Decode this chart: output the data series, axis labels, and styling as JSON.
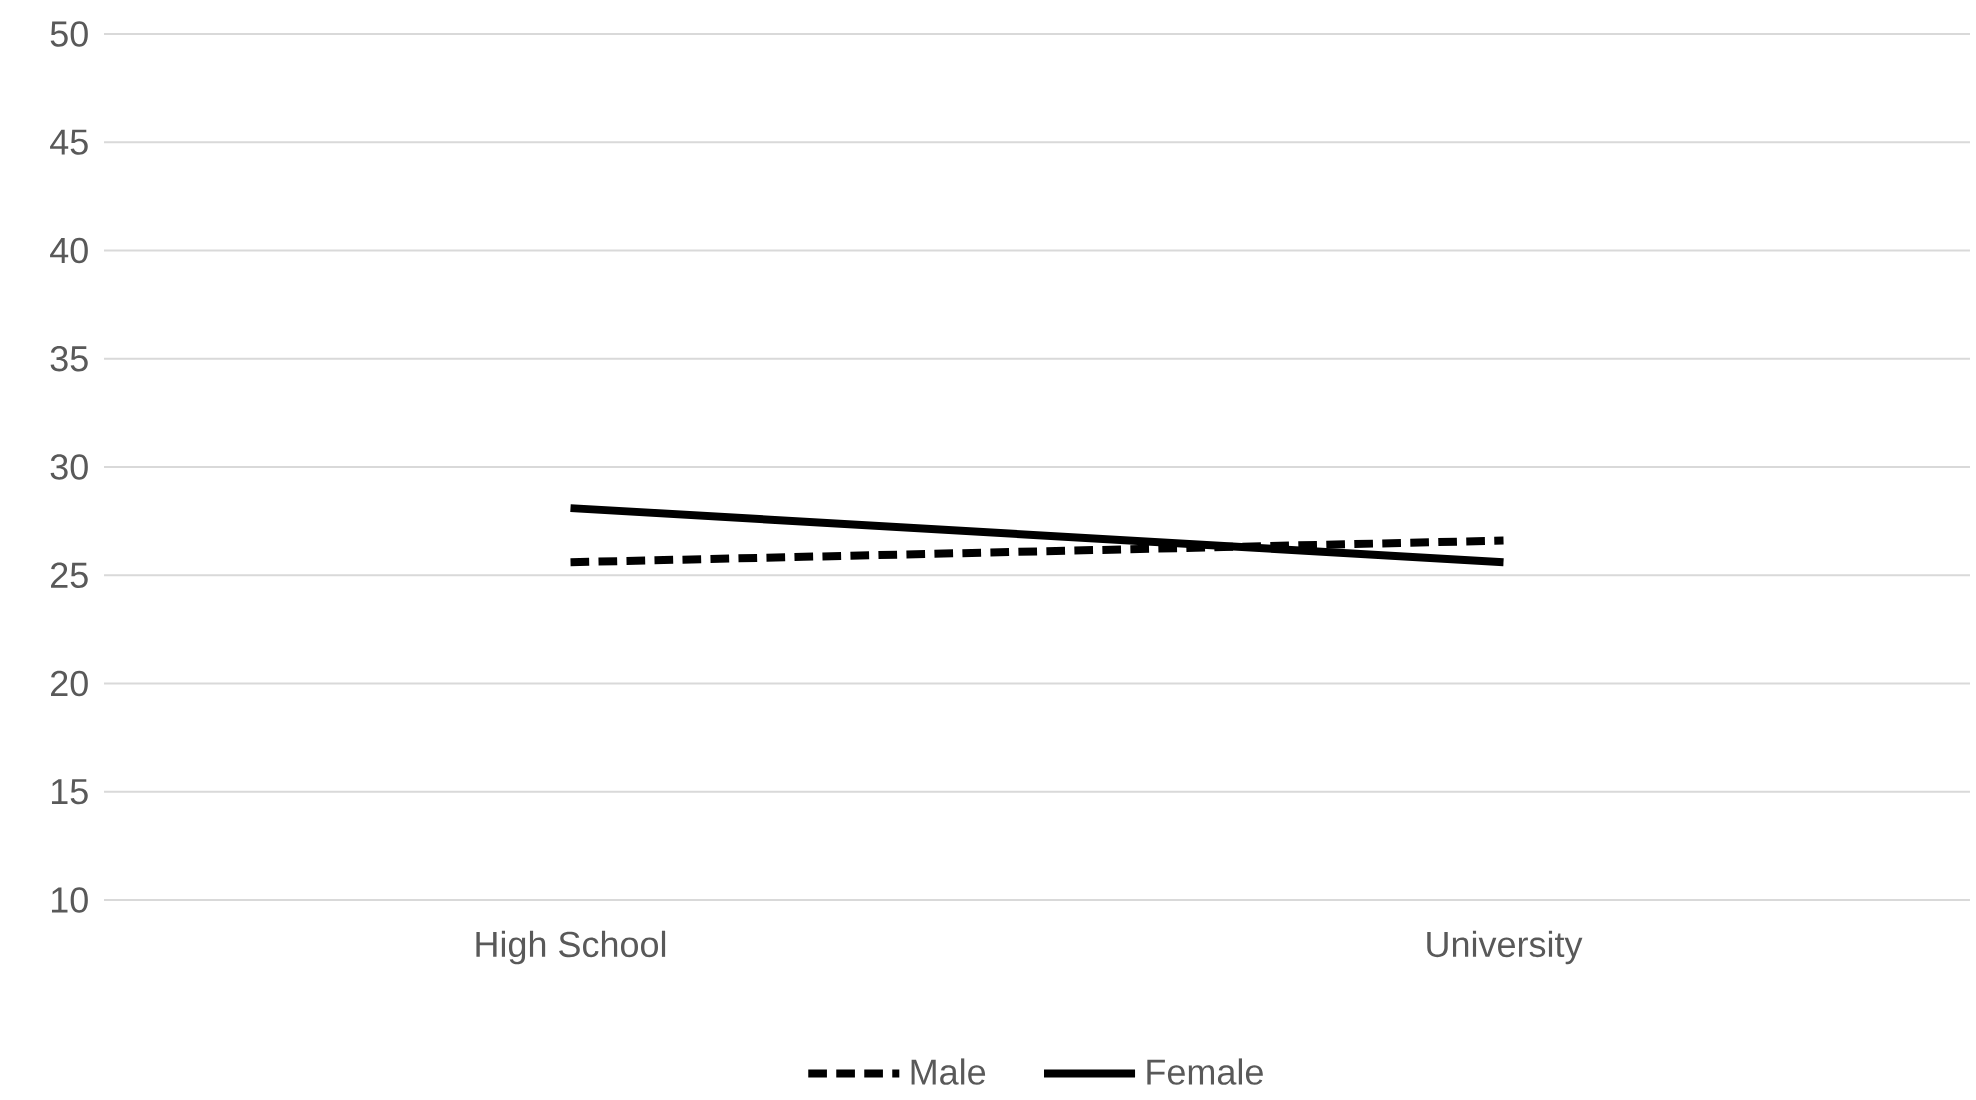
{
  "chart_data": {
    "type": "line",
    "categories": [
      "High School",
      "University"
    ],
    "series": [
      {
        "name": "Male",
        "color": "#000000",
        "line_style": "dashed",
        "values": [
          25.6,
          26.6
        ]
      },
      {
        "name": "Female",
        "color": "#000000",
        "line_style": "solid",
        "values": [
          28.1,
          25.6
        ]
      }
    ],
    "ylim": [
      10,
      50
    ],
    "yticks": [
      10,
      15,
      20,
      25,
      30,
      35,
      40,
      45,
      50
    ],
    "grid": "y",
    "legend": "bottom",
    "marker": "none"
  }
}
